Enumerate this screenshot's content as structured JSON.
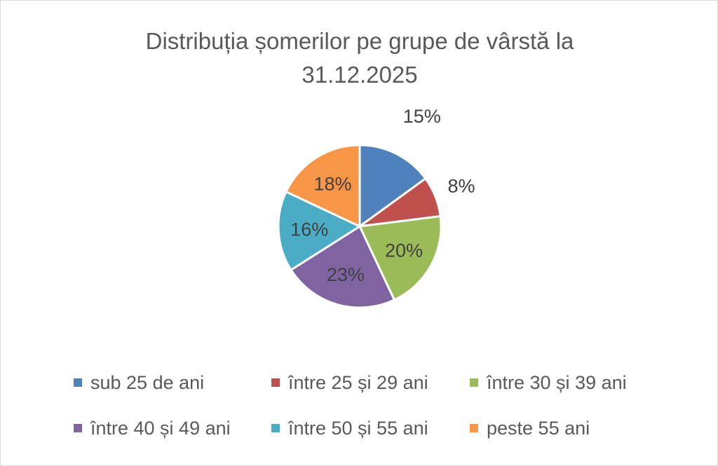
{
  "chart_data": {
    "type": "pie",
    "title_lines": [
      "Distribuția șomerilor pe grupe de vârstă la",
      "31.12.2025"
    ],
    "categories": [
      "sub 25 de ani",
      "între 25 și 29 ani",
      "între 30 și 39 ani",
      "între 40 și 49 ani",
      "între 50 și 55 ani",
      "peste 55 ani"
    ],
    "values": [
      15,
      8,
      20,
      23,
      16,
      18
    ],
    "data_labels": [
      "15%",
      "8%",
      "20%",
      "23%",
      "16%",
      "18%"
    ],
    "colors": [
      "#4F81BD",
      "#C0504D",
      "#9BBB59",
      "#8064A2",
      "#4BACC6",
      "#F79646"
    ],
    "legend_position": "bottom",
    "start_angle": "12 o'clock, clockwise"
  }
}
